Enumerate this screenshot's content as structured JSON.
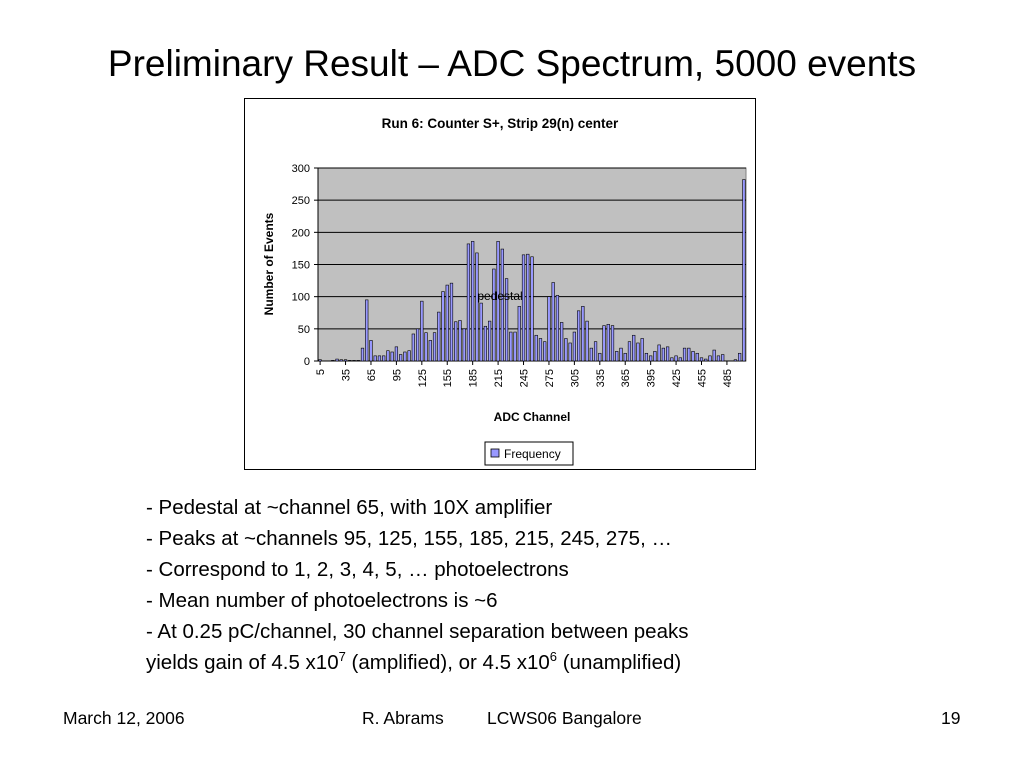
{
  "slide": {
    "title": "Preliminary Result – ADC Spectrum, 5000 events",
    "bullets": [
      {
        "text": "- Pedestal at ~channel 65, with 10X amplifier"
      },
      {
        "text": "- Peaks at ~channels 95, 125, 155, 185, 215, 245, 275, …"
      },
      {
        "text": "- Correspond to 1, 2, 3, 4, 5, … photoelectrons"
      },
      {
        "text": "- Mean number of photoelectrons is ~6"
      },
      {
        "text": "- At 0.25 pC/channel, 30 channel separation between peaks"
      },
      {
        "text": "yields gain of 4.5 x10",
        "sup": "7",
        "after": " (amplified), or 4.5 x10",
        "sup2": "6",
        "after2": " (unamplified)"
      }
    ],
    "footer": {
      "date": "March 12, 2006",
      "author": "R. Abrams",
      "conference": "LCWS06 Bangalore",
      "page": "19"
    }
  },
  "chart_data": {
    "type": "bar",
    "title": "Run 6: Counter S+, Strip 29(n) center",
    "xlabel": "ADC Channel",
    "ylabel": "Number of Events",
    "ylim": [
      0,
      300
    ],
    "yticks": [
      0,
      50,
      100,
      150,
      200,
      250,
      300
    ],
    "xticks": [
      "5",
      "35",
      "65",
      "95",
      "125",
      "155",
      "185",
      "215",
      "245",
      "275",
      "305",
      "335",
      "365",
      "395",
      "425",
      "455",
      "485"
    ],
    "grid": true,
    "legend_position": "bottom",
    "annotation": "pedestal",
    "series": [
      {
        "name": "Frequency",
        "color": "#9999ff",
        "x": [
          5,
          10,
          15,
          20,
          25,
          30,
          35,
          40,
          45,
          50,
          55,
          60,
          65,
          70,
          75,
          80,
          85,
          90,
          95,
          100,
          105,
          110,
          115,
          120,
          125,
          130,
          135,
          140,
          145,
          150,
          155,
          160,
          165,
          170,
          175,
          180,
          185,
          190,
          195,
          200,
          205,
          210,
          215,
          220,
          225,
          230,
          235,
          240,
          245,
          250,
          255,
          260,
          265,
          270,
          275,
          280,
          285,
          290,
          295,
          300,
          305,
          310,
          315,
          320,
          325,
          330,
          335,
          340,
          345,
          350,
          355,
          360,
          365,
          370,
          375,
          380,
          385,
          390,
          395,
          400,
          405,
          410,
          415,
          420,
          425,
          430,
          435,
          440,
          445,
          450,
          455,
          460,
          465,
          470,
          475,
          480,
          485,
          490,
          495,
          500,
          505
        ],
        "values": [
          2,
          0,
          0,
          1,
          3,
          2,
          2,
          1,
          1,
          1,
          20,
          95,
          32,
          8,
          8,
          8,
          16,
          14,
          22,
          10,
          14,
          16,
          42,
          50,
          93,
          44,
          32,
          44,
          76,
          108,
          118,
          121,
          61,
          63,
          50,
          182,
          186,
          168,
          90,
          54,
          62,
          143,
          186,
          174,
          128,
          45,
          45,
          85,
          165,
          166,
          162,
          40,
          35,
          30,
          100,
          122,
          102,
          60,
          35,
          28,
          45,
          78,
          85,
          62,
          20,
          30,
          12,
          55,
          57,
          55,
          15,
          20,
          12,
          30,
          40,
          28,
          35,
          12,
          8,
          15,
          25,
          20,
          22,
          5,
          8,
          5,
          20,
          20,
          15,
          12,
          5,
          3,
          8,
          17,
          8,
          10,
          0,
          0,
          2,
          12,
          282
        ]
      }
    ]
  }
}
